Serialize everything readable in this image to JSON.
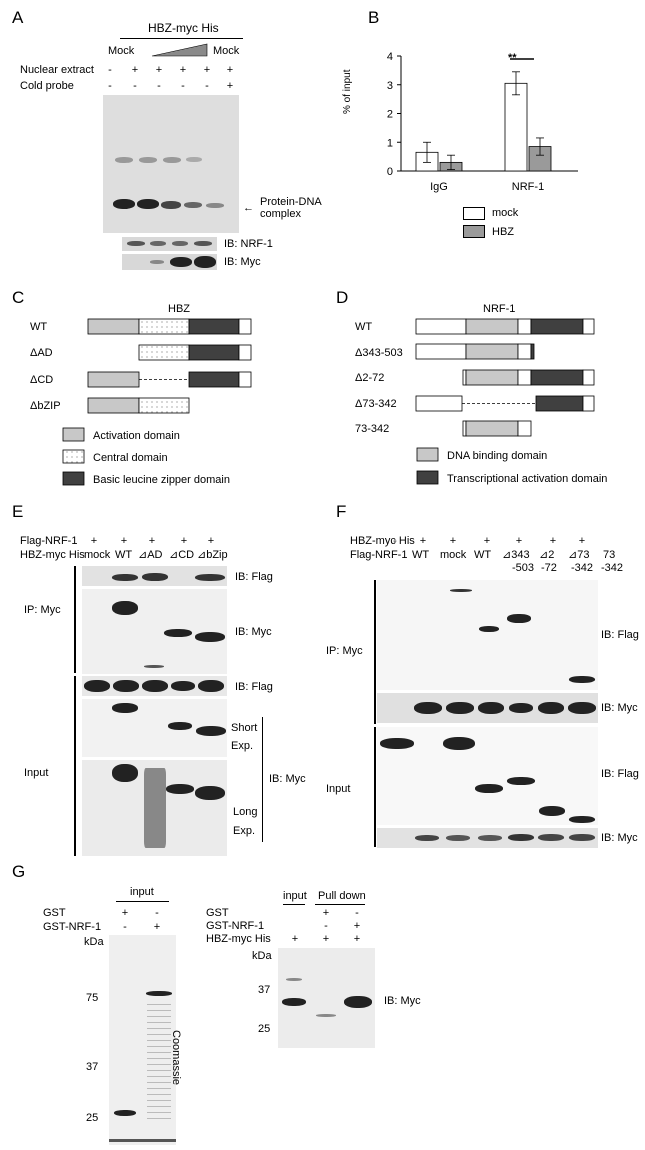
{
  "colors": {
    "mock": "#ffffff",
    "hbz": "#9a9a9a",
    "activation": "#c8c8c8",
    "bzip": "#404040",
    "tad": "#404040",
    "dbd": "#c8c8c8"
  },
  "panelA": {
    "letter": "A",
    "construct": "HBZ-myc His",
    "mock1": "Mock",
    "mock2": "Mock",
    "rows": [
      {
        "label": "Nuclear extract",
        "values": [
          "-",
          "+",
          "+",
          "+",
          "+",
          "+"
        ]
      },
      {
        "label": "Cold probe",
        "values": [
          "-",
          "-",
          "-",
          "-",
          "-",
          "+"
        ]
      }
    ],
    "annotation": "Protein-DNA complex",
    "annotation_l1": "Protein-DNA",
    "annotation_l2": "complex",
    "ib1": "IB: NRF-1",
    "ib2": "IB: Myc"
  },
  "panelB": {
    "letter": "B",
    "legend_mock": "mock",
    "legend_hbz": "HBZ",
    "significance": "**"
  },
  "chart_data": {
    "type": "bar",
    "categories": [
      "IgG",
      "NRF-1"
    ],
    "series": [
      {
        "name": "mock",
        "values": [
          0.65,
          3.05
        ],
        "errors": [
          0.35,
          0.4
        ]
      },
      {
        "name": "HBZ",
        "values": [
          0.3,
          0.85
        ],
        "errors": [
          0.25,
          0.3
        ]
      }
    ],
    "ylabel": "% of input",
    "ylim": [
      0,
      4
    ],
    "yticks": [
      "0",
      "1",
      "2",
      "3",
      "4"
    ]
  },
  "panelC": {
    "letter": "C",
    "title": "HBZ",
    "rows": [
      "WT",
      "ΔAD",
      "ΔCD",
      "ΔbZIP"
    ],
    "legend": [
      "Activation domain",
      "Central domain",
      "Basic leucine zipper domain"
    ]
  },
  "panelD": {
    "letter": "D",
    "title": "NRF-1",
    "rows": [
      "WT",
      "Δ343-503",
      "Δ2-72",
      "Δ73-342",
      "73-342"
    ],
    "legend": [
      "DNA binding domain",
      "Transcriptional activation domain"
    ]
  },
  "panelE": {
    "letter": "E",
    "row1_label": "Flag-NRF-1",
    "row1_values": [
      "+",
      "+",
      "+",
      "+",
      "+"
    ],
    "row2_label": "HBZ-myc His",
    "lanes": [
      "mock",
      "WT",
      "⊿AD",
      "⊿CD",
      "⊿bZip"
    ],
    "ip_label": "IP: Myc",
    "input_label": "Input",
    "ib_flag": "IB: Flag",
    "ib_myc": "IB: Myc",
    "ib_flag2": "IB: Flag",
    "short": "Short",
    "exp1": "Exp.",
    "long": "Long",
    "exp2": "Exp.",
    "ib_myc2": "IB: Myc"
  },
  "panelF": {
    "letter": "F",
    "row1_label": "HBZ-myc His",
    "row1_values": [
      "-",
      "+",
      "+",
      "+",
      "+",
      "+",
      "+"
    ],
    "row2_label": "Flag-NRF-1",
    "lanes_top": [
      "WT",
      "mock",
      "WT",
      "⊿343",
      "⊿2",
      "⊿73",
      "73"
    ],
    "lanes_bottom": [
      "",
      "",
      "",
      "-503",
      "-72",
      "-342",
      "-342"
    ],
    "ip_label": "IP: Myc",
    "input_label": "Input",
    "ib_flag": "IB: Flag",
    "ib_myc": "IB: Myc",
    "ib_flag2": "IB: Flag",
    "ib_myc2": "IB: Myc"
  },
  "panelG": {
    "letter": "G",
    "left_header": "input",
    "left_rows": [
      {
        "label": "GST",
        "values": [
          "+",
          "-"
        ]
      },
      {
        "label": "GST-NRF-1",
        "values": [
          "-",
          "+"
        ]
      }
    ],
    "kda": "kDa",
    "left_markers": [
      "75",
      "37",
      "25"
    ],
    "coomassie": "Coomassie",
    "right_header_input": "input",
    "right_header_pulldown": "Pull down",
    "right_rows": [
      {
        "label": "GST",
        "values": [
          "",
          "+",
          "-"
        ]
      },
      {
        "label": "GST-NRF-1",
        "values": [
          "",
          "-",
          "+"
        ]
      },
      {
        "label": "HBZ-myc His",
        "values": [
          "+",
          "+",
          "+"
        ]
      }
    ],
    "kda2": "kDa",
    "right_markers": [
      "37",
      "25"
    ],
    "ib": "IB: Myc"
  }
}
